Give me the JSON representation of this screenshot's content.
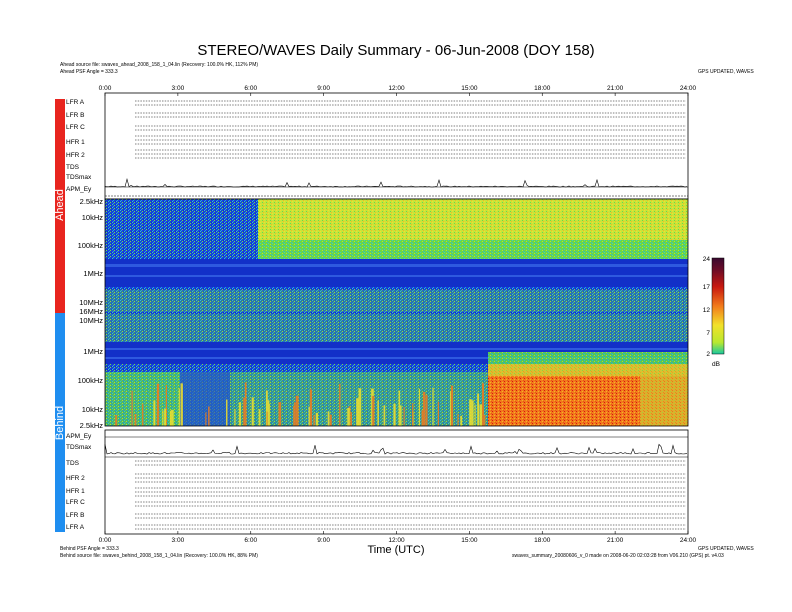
{
  "header": {
    "title": "STEREO/WAVES Daily Summary - 06-Jun-2008 (DOY 158)",
    "ahead_source": "Ahead source file: swaves_ahead_2008_158_1_04.lin (Recovery: 100.0% HK, 112% PM)",
    "ahead_psf": "Ahead PSF Angle = 333.3",
    "ahead_right_note": "GPS UPDATED, WAVES"
  },
  "footer": {
    "behind_psf": "Behind PSF Angle = 333.3",
    "behind_source": "Behind source file: swaves_behind_2008_158_1_04.lin (Recovery: 100.0% HK, 88% PM)",
    "right_note_1": "GPS UPDATED, WAVES",
    "right_note_2": "swaves_summary_20080606_v_0 made on 2008-06-20 02:03:28 from V06.210 (GPS) pt. v4.03",
    "xlabel": "Time (UTC)"
  },
  "side_labels": {
    "ahead": "Ahead",
    "behind": "Behind"
  },
  "ahead_rows": [
    "LFR A",
    "LFR B",
    "LFR C",
    "HFR 1",
    "HFR 2",
    "TDS",
    "TDSmax",
    "APM_Ey"
  ],
  "behind_rows": [
    "APM_Ey",
    "TDSmax",
    "TDS",
    "HFR 2",
    "HFR 1",
    "LFR C",
    "LFR B",
    "LFR A"
  ],
  "chart_data": {
    "type": "heatmap",
    "title": "STEREO/WAVES Daily Summary - 06-Jun-2008 (DOY 158)",
    "xlabel": "Time (UTC)",
    "x_ticks": [
      "0:00",
      "3:00",
      "6:00",
      "9:00",
      "12:00",
      "15:00",
      "18:00",
      "21:00",
      "24:00"
    ],
    "xlim_hours": [
      0,
      24
    ],
    "ahead_freq_ticks": [
      "2.5kHz",
      "10kHz",
      "100kHz",
      "1MHz",
      "10MHz",
      "16MHz"
    ],
    "behind_freq_ticks": [
      "10MHz",
      "1MHz",
      "100kHz",
      "10kHz",
      "2.5kHz"
    ],
    "colorbar": {
      "ticks": [
        "24",
        "17",
        "12",
        "7",
        "2"
      ],
      "label": "dB",
      "range": [
        2,
        24
      ]
    },
    "colors": {
      "low": "#0a2ccf",
      "mid_low": "#19b6e8",
      "mid": "#5dd64a",
      "mid_high": "#f2e12a",
      "high": "#f27a1c",
      "max": "#d6180f"
    },
    "features": [
      {
        "panel": "ahead",
        "band": "2.5kHz-300kHz",
        "start_h": 6.0,
        "end_h": 24.0,
        "level_db": 12
      },
      {
        "panel": "ahead",
        "band": "700kHz-1.3MHz",
        "start_h": 0.0,
        "end_h": 24.0,
        "level_db": 2
      },
      {
        "panel": "behind",
        "band": "2.5kHz-200kHz",
        "start_h": 15.6,
        "end_h": 22.0,
        "level_db": 20
      },
      {
        "panel": "behind",
        "band": "700kHz-1.3MHz",
        "start_h": 0.0,
        "end_h": 24.0,
        "level_db": 2
      }
    ]
  }
}
